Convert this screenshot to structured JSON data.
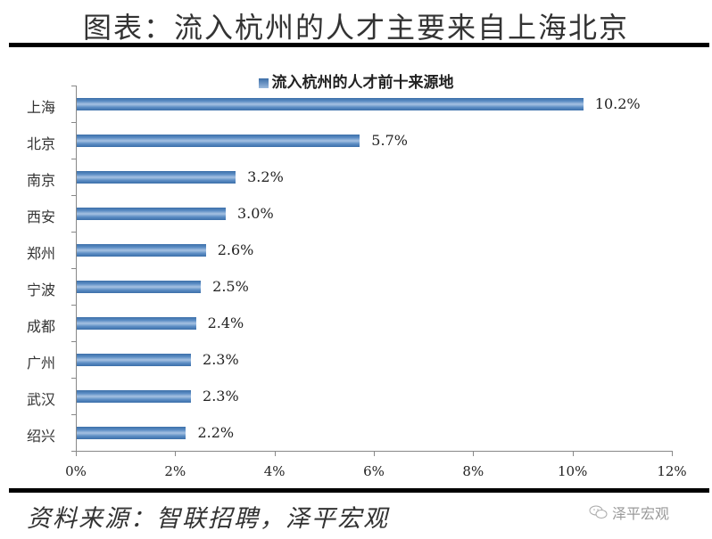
{
  "header": {
    "title": "图表：流入杭州的人才主要来自上海北京"
  },
  "chart_data": {
    "type": "bar",
    "orientation": "horizontal",
    "title": "流入杭州的人才前十来源地",
    "legend": [
      "流入杭州的人才前十来源地"
    ],
    "legend_position": "top",
    "categories": [
      "上海",
      "北京",
      "南京",
      "西安",
      "郑州",
      "宁波",
      "成都",
      "广州",
      "武汉",
      "绍兴"
    ],
    "values": [
      10.2,
      5.7,
      3.2,
      3.0,
      2.6,
      2.5,
      2.4,
      2.3,
      2.3,
      2.2
    ],
    "value_labels": [
      "10.2%",
      "5.7%",
      "3.2%",
      "3.0%",
      "2.6%",
      "2.5%",
      "2.4%",
      "2.3%",
      "2.3%",
      "2.2%"
    ],
    "xlabel": "",
    "ylabel": "",
    "xlim": [
      0,
      12
    ],
    "x_ticks": [
      "0%",
      "2%",
      "4%",
      "6%",
      "8%",
      "10%",
      "12%"
    ],
    "grid": false,
    "bar_color": "#4a7dbb"
  },
  "footer": {
    "source": "资料来源：智联招聘，泽平宏观",
    "watermark": "泽平宏观",
    "watermark_icon": "wechat-icon"
  }
}
